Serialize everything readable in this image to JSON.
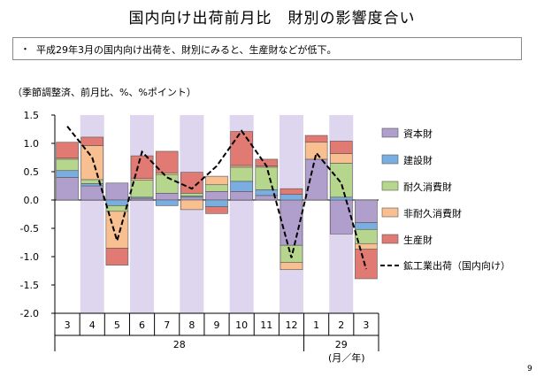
{
  "title": "国内向け出荷前月比　財別の影響度合い",
  "summary": {
    "bullet": "・",
    "text": "平成29年3月の国内向け出荷を、財別にみると、生産財などが低下。"
  },
  "unit_note": "（季節調整済、前月比、%、%ポイント）",
  "page_number": "9",
  "chart_data": {
    "type": "bar",
    "subtype": "stacked bar with line overlay",
    "categories": [
      "3",
      "4",
      "5",
      "6",
      "7",
      "8",
      "9",
      "10",
      "11",
      "12",
      "1",
      "2",
      "3"
    ],
    "year_labels": [
      "28",
      "29"
    ],
    "axis_unit_label": "(月／年)",
    "yticks": [
      "1.5",
      "1.0",
      "0.5",
      "0.0",
      "-0.5",
      "-1.0",
      "-1.5",
      "-2.0"
    ],
    "ylim": [
      -2.0,
      1.5
    ],
    "shaded_categories": [
      1,
      3,
      5,
      7,
      9,
      11
    ],
    "shade_color": "#ddd6ee",
    "legend_position": "right",
    "series": [
      {
        "name": "資本財",
        "color": "#b09fcc",
        "values": [
          0.4,
          0.25,
          0.3,
          0.03,
          0.12,
          0.05,
          0.15,
          0.15,
          0.08,
          -0.8,
          0.72,
          -0.6,
          -0.4
        ]
      },
      {
        "name": "建設財",
        "color": "#7aaee0",
        "values": [
          0.12,
          0.04,
          -0.1,
          0.02,
          -0.1,
          0.02,
          -0.12,
          0.18,
          0.1,
          0.1,
          0.0,
          0.05,
          -0.12
        ]
      },
      {
        "name": "耐久消費財",
        "color": "#b6d68e",
        "values": [
          0.2,
          0.07,
          -0.1,
          0.3,
          0.33,
          0.05,
          0.12,
          0.25,
          0.4,
          -0.3,
          0.0,
          0.6,
          -0.25
        ]
      },
      {
        "name": "非耐久消費財",
        "color": "#f8bf90",
        "values": [
          0.02,
          0.6,
          -0.65,
          0.03,
          0.03,
          -0.17,
          0.15,
          0.03,
          0.02,
          -0.13,
          0.3,
          0.17,
          -0.1
        ]
      },
      {
        "name": "生産財",
        "color": "#e07a72",
        "values": [
          0.28,
          0.15,
          -0.3,
          0.4,
          0.38,
          0.37,
          -0.12,
          0.6,
          0.12,
          0.1,
          0.12,
          0.22,
          -0.52
        ]
      }
    ],
    "line": {
      "name": "鉱工業出荷（国内向け）",
      "style": "dashed",
      "color": "#000000",
      "values": [
        1.3,
        0.75,
        -0.72,
        0.85,
        0.4,
        0.2,
        0.6,
        1.22,
        0.6,
        -1.02,
        0.83,
        0.3,
        -1.22
      ]
    }
  }
}
